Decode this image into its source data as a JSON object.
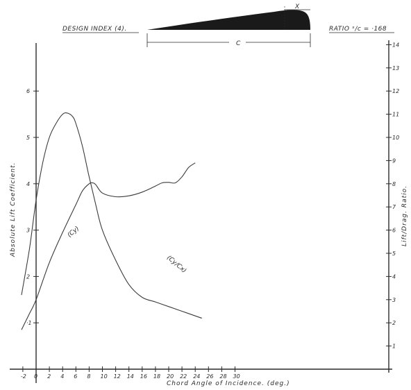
{
  "header": {
    "design_index": "DESIGN INDEX (4).",
    "ratio": "RATIO ˣ/c = ·168",
    "chord_label": "C",
    "thickness_label": "X"
  },
  "colors": {
    "ink": "#2a2a2a",
    "paper": "#ffffff",
    "profile": "#1a1a1a"
  },
  "chart_data": {
    "type": "line",
    "title": "",
    "xlabel": "Chord Angle of Incidence. (deg.)",
    "ylabel_left": "Absolute Lift Coefficient.",
    "ylabel_right": "Lift/Drag. Ratio.",
    "xlim": [
      -2,
      30
    ],
    "ylim_left": [
      0,
      7
    ],
    "ylim_right": [
      0,
      14
    ],
    "grid": false,
    "x_ticks": [
      "-2",
      "0",
      "2",
      "4",
      "6",
      "8",
      "10",
      "12",
      "14",
      "16",
      "18",
      "20",
      "22",
      "24",
      "26",
      "28",
      "30"
    ],
    "y_left_ticks": [
      "·1",
      "2",
      "3",
      "4",
      "5",
      "6"
    ],
    "y_right_ticks": [
      "1",
      "2",
      "3",
      "4",
      "5",
      "6",
      "7",
      "8",
      "9",
      "10",
      "11",
      "12",
      "13",
      "14"
    ],
    "series": [
      {
        "name": "(Cy)",
        "axis": "left",
        "x": [
          -2.2,
          -1,
          0,
          2,
          4,
          6,
          7,
          8,
          8.5,
          9,
          10,
          12,
          14,
          16,
          18,
          19,
          20,
          21,
          22,
          23,
          24
        ],
        "y": [
          0.85,
          1.2,
          1.5,
          2.3,
          2.95,
          3.55,
          3.85,
          4.0,
          4.02,
          3.98,
          3.8,
          3.72,
          3.74,
          3.82,
          3.95,
          4.02,
          4.03,
          4.02,
          4.15,
          4.35,
          4.45
        ]
      },
      {
        "name": "(Cy/Cx)",
        "axis": "right",
        "x": [
          -2.2,
          -1,
          0,
          1,
          2,
          3,
          4,
          4.7,
          5.5,
          6,
          7,
          8,
          9,
          10,
          12,
          14,
          16,
          18,
          20,
          22,
          24,
          25
        ],
        "y": [
          3.2,
          5.2,
          7.3,
          8.9,
          10.0,
          10.6,
          11.0,
          11.05,
          10.9,
          10.6,
          9.6,
          8.3,
          7.1,
          6.0,
          4.7,
          3.65,
          3.1,
          2.9,
          2.7,
          2.5,
          2.3,
          2.2
        ]
      }
    ],
    "annotations": [
      "(Cy)",
      "(Cy/Cx)"
    ]
  }
}
